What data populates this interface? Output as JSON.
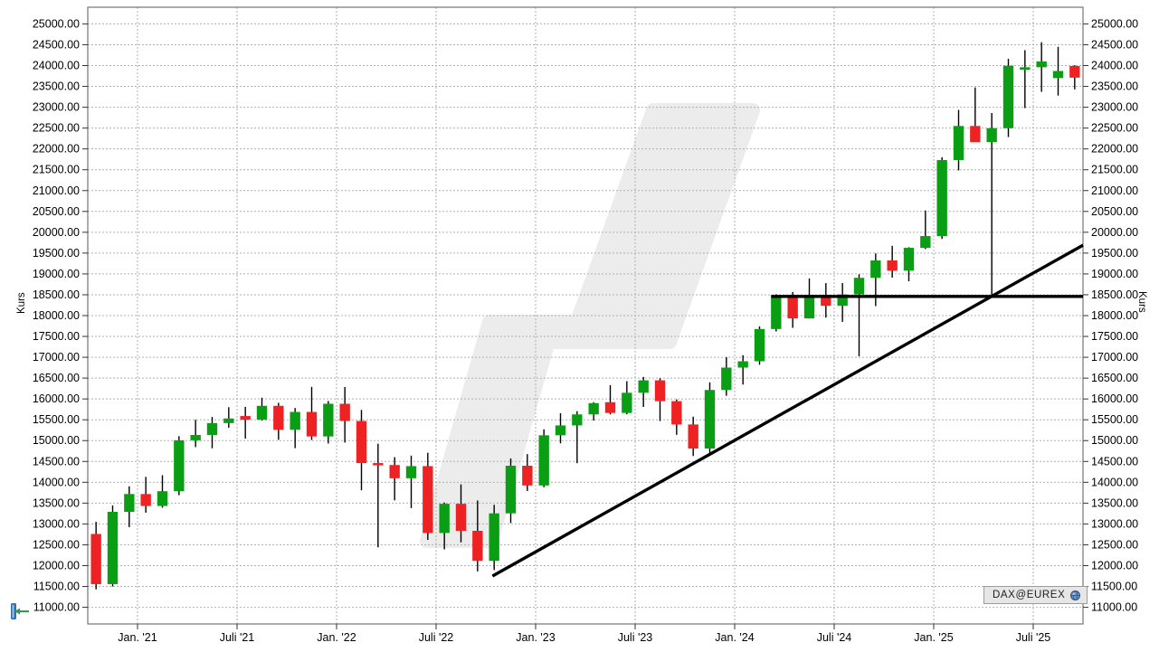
{
  "chart": {
    "y_axis": {
      "title": "Kurs",
      "tick_min": 11000,
      "tick_max": 25000,
      "tick_step": 500,
      "decimals": 2,
      "shown_on": [
        "left",
        "right"
      ]
    },
    "x_axis": {
      "ticks": [
        {
          "label": "Jan. '21",
          "month_index": 3
        },
        {
          "label": "Juli '21",
          "month_index": 9
        },
        {
          "label": "Jan. '22",
          "month_index": 15
        },
        {
          "label": "Juli '22",
          "month_index": 21
        },
        {
          "label": "Jan. '23",
          "month_index": 27
        },
        {
          "label": "Juli '23",
          "month_index": 33
        },
        {
          "label": "Jan. '24",
          "month_index": 39
        },
        {
          "label": "Juli '24",
          "month_index": 45
        },
        {
          "label": "Jan. '25",
          "month_index": 51
        },
        {
          "label": "Juli '25",
          "month_index": 57
        }
      ]
    },
    "badge": {
      "label": "DAX@EUREX",
      "icon": "globe-icon"
    },
    "tools": {
      "axis_collapse_icon": "collapse-left-arrow-icon"
    },
    "colors": {
      "candle_up": "#0a9e14",
      "candle_down": "#ee2222",
      "wick": "#000000",
      "grid": "#b0b0b0",
      "axis_frame": "#5a5a5a",
      "tick": "#333333",
      "label_text": "#000000",
      "trendline": "#000000",
      "watermark": "#ececec",
      "badge_bg": "#e6e6e6",
      "badge_border": "#9c9c9c",
      "globe_blue": "#4a7ab5",
      "tool_blue": "#2f6fb8",
      "tool_green": "#2e9e4f"
    }
  },
  "chart_data": {
    "type": "candlestick",
    "instrument": "DAX@EUREX",
    "interval": "monthly",
    "ylabel": "Kurs",
    "ylim": [
      10600,
      25400
    ],
    "grid": true,
    "columns": [
      "month",
      "open",
      "high",
      "low",
      "close"
    ],
    "candles": [
      [
        "Okt '20",
        12760,
        13050,
        11430,
        11556
      ],
      [
        "Nov '20",
        11556,
        13445,
        11500,
        13291
      ],
      [
        "Dez '20",
        13291,
        13903,
        12923,
        13718
      ],
      [
        "Jan '21",
        13718,
        14131,
        13270,
        13432
      ],
      [
        "Feb '21",
        13432,
        14169,
        13390,
        13786
      ],
      [
        "Mär '21",
        13786,
        15107,
        13690,
        15008
      ],
      [
        "Apr '21",
        15008,
        15501,
        14845,
        15136
      ],
      [
        "Mai '21",
        15136,
        15568,
        14816,
        15421
      ],
      [
        "Jun '21",
        15421,
        15802,
        15309,
        15531
      ],
      [
        "Jul '21",
        15590,
        15810,
        15048,
        15500
      ],
      [
        "Aug '21",
        15500,
        16030,
        15480,
        15835
      ],
      [
        "Sep '21",
        15835,
        15907,
        15019,
        15260
      ],
      [
        "Okt '21",
        15260,
        15782,
        14819,
        15688
      ],
      [
        "Nov '21",
        15688,
        16290,
        15015,
        15100
      ],
      [
        "Dez '21",
        15100,
        15950,
        14930,
        15884
      ],
      [
        "Jan '22",
        15884,
        16285,
        14953,
        15471
      ],
      [
        "Feb '22",
        15471,
        15737,
        13807,
        14461
      ],
      [
        "Mär '22",
        14461,
        14925,
        12439,
        14414
      ],
      [
        "Apr '22",
        14414,
        14603,
        13566,
        14097
      ],
      [
        "Mai '22",
        14097,
        14640,
        13381,
        14388
      ],
      [
        "Jun '22",
        14388,
        14709,
        12618,
        12783
      ],
      [
        "Jul '22",
        12783,
        13515,
        12390,
        13484
      ],
      [
        "Aug '22",
        13484,
        13950,
        12558,
        12835
      ],
      [
        "Sep '22",
        12835,
        13564,
        11862,
        12114
      ],
      [
        "Okt '22",
        12114,
        13460,
        11894,
        13254
      ],
      [
        "Nov '22",
        13254,
        14572,
        13022,
        14397
      ],
      [
        "Dez '22",
        14397,
        14676,
        13792,
        13924
      ],
      [
        "Jan '23",
        13924,
        15270,
        13880,
        15128
      ],
      [
        "Feb '23",
        15128,
        15658,
        14935,
        15365
      ],
      [
        "Mär '23",
        15365,
        15706,
        14458,
        15629
      ],
      [
        "Apr '23",
        15629,
        15922,
        15482,
        15900
      ],
      [
        "Mai '23",
        15922,
        16332,
        15629,
        15664
      ],
      [
        "Jun '23",
        15664,
        16427,
        15631,
        16148
      ],
      [
        "Jul '23",
        16148,
        16528,
        15808,
        16447
      ],
      [
        "Aug '23",
        16447,
        16497,
        15469,
        15947
      ],
      [
        "Sep '23",
        15947,
        15989,
        15139,
        15387
      ],
      [
        "Okt '23",
        15387,
        15575,
        14630,
        14810
      ],
      [
        "Nov '23",
        14810,
        16399,
        14708,
        16215
      ],
      [
        "Dez '23",
        16215,
        17003,
        16076,
        16752
      ],
      [
        "Jan '24",
        16752,
        17050,
        16345,
        16904
      ],
      [
        "Feb '24",
        16904,
        17742,
        16821,
        17678
      ],
      [
        "Mär '24",
        17678,
        18513,
        17619,
        18492
      ],
      [
        "Apr '24",
        18492,
        18567,
        17707,
        17932
      ],
      [
        "Mai '24",
        17932,
        18893,
        17932,
        18498
      ],
      [
        "Jun '24",
        18498,
        18780,
        17951,
        18235
      ],
      [
        "Jul '24",
        18235,
        18781,
        17850,
        18509
      ],
      [
        "Aug '24",
        18509,
        18991,
        17025,
        18907
      ],
      [
        "Sep '24",
        18907,
        19492,
        18228,
        19324
      ],
      [
        "Okt '24",
        19324,
        19675,
        18912,
        19078
      ],
      [
        "Nov '24",
        19078,
        19640,
        18823,
        19626
      ],
      [
        "Dez '24",
        19626,
        20523,
        19597,
        19909
      ],
      [
        "Jan '25",
        19909,
        21801,
        19839,
        21732
      ],
      [
        "Feb '25",
        21732,
        22935,
        21484,
        22551
      ],
      [
        "Mär '25",
        22551,
        23476,
        22259,
        22163
      ],
      [
        "Apr '25",
        22163,
        22860,
        18489,
        22497
      ],
      [
        "Mai '25",
        22497,
        24162,
        22285,
        23997
      ],
      [
        "Jun '25",
        23900,
        24370,
        22980,
        23960
      ],
      [
        "Jul '25",
        23960,
        24560,
        23370,
        24100
      ],
      [
        "Aug '25",
        23700,
        24450,
        23280,
        23870
      ],
      [
        "Sep '25",
        23990,
        24010,
        23430,
        23710
      ]
    ],
    "trendlines": [
      {
        "name": "horizontal-resistance",
        "pos1": 41.2,
        "price1": 18460,
        "pos2": 60,
        "price2": 18460
      },
      {
        "name": "ascending-support",
        "pos1": 24.4,
        "price1": 11750,
        "pos2": 60,
        "price2": 19690
      }
    ]
  }
}
